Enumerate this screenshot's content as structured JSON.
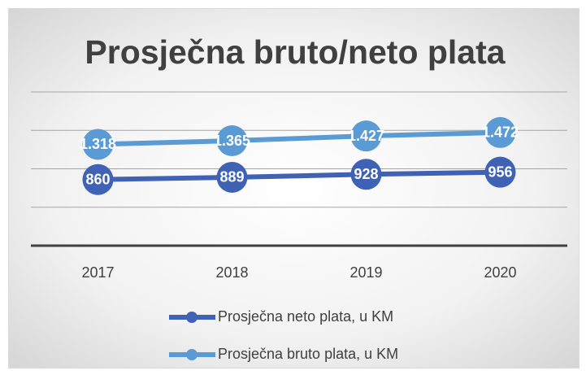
{
  "chart_data": {
    "type": "line",
    "title": "Prosječna bruto/neto plata",
    "categories": [
      "2017",
      "2018",
      "2019",
      "2020"
    ],
    "series": [
      {
        "name": "Prosječna neto plata, u KM",
        "color": "#4062b4",
        "values": [
          860,
          889,
          928,
          956
        ]
      },
      {
        "name": "Prosječna bruto plata, u KM",
        "color": "#5b9bd5",
        "values": [
          1318,
          1365,
          1427,
          1472
        ],
        "value_labels": [
          "1.318",
          "1.365",
          "1.427",
          "1.472"
        ]
      }
    ],
    "ylim": [
      0,
      2000
    ],
    "yticks": [
      0,
      500,
      1000,
      1500,
      2000
    ],
    "grid": true,
    "legend": "bottom"
  }
}
